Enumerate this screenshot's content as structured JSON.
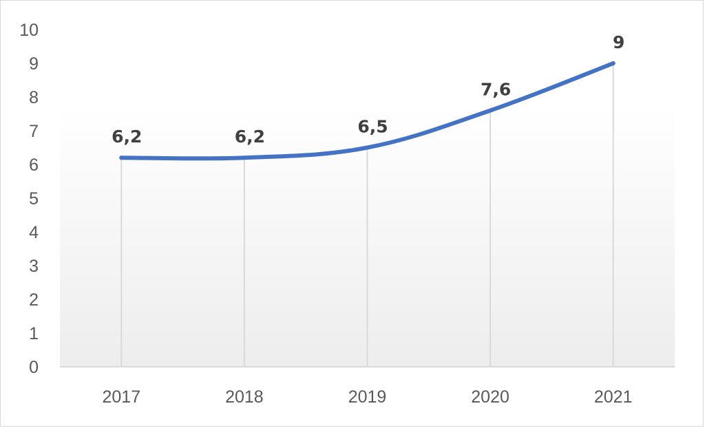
{
  "chart_data": {
    "type": "line",
    "categories": [
      "2017",
      "2018",
      "2019",
      "2020",
      "2021"
    ],
    "series": [
      {
        "values": [
          6.2,
          6.2,
          6.5,
          7.6,
          9
        ],
        "data_labels": [
          "6,2",
          "6,2",
          "6,5",
          "7,6",
          "9"
        ],
        "color": "#4472C4"
      }
    ],
    "y_ticks": [
      "0",
      "1",
      "2",
      "3",
      "4",
      "5",
      "6",
      "7",
      "8",
      "9",
      "10"
    ],
    "ylim": [
      0,
      10
    ],
    "title": "",
    "xlabel": "",
    "ylabel": "",
    "grid": "vertical",
    "legend": "none",
    "colors": {
      "line": "#4472C4",
      "grid": "#d9d9d9",
      "plot_gradient_top": "#ffffff",
      "plot_gradient_bottom": "#ededed"
    }
  }
}
